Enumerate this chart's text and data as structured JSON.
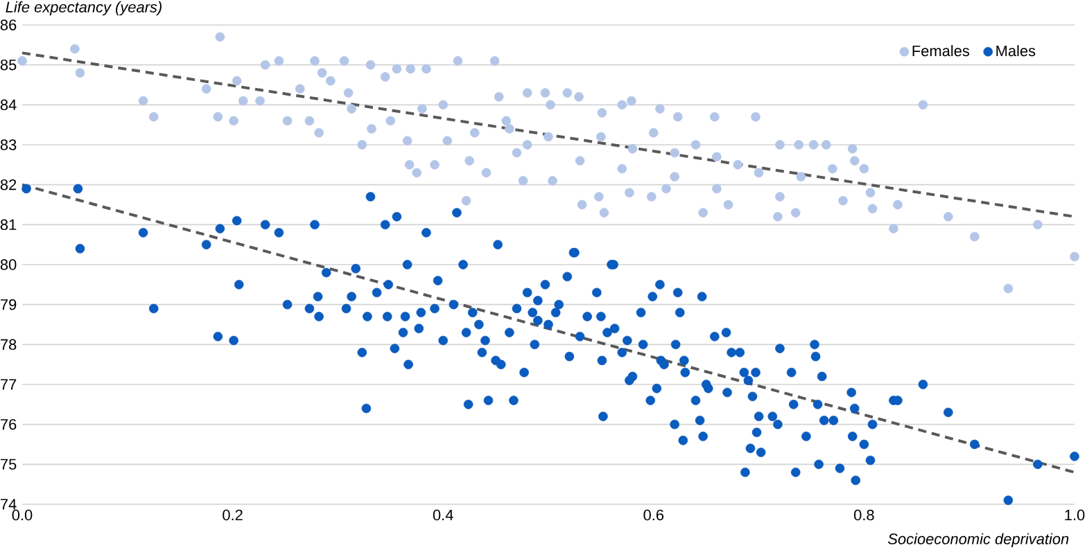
{
  "chart_data": {
    "type": "scatter",
    "xlabel": "Socioeconomic deprivation",
    "ylabel": "Life expectancy (years)",
    "xlim": [
      0,
      1
    ],
    "ylim": [
      74,
      86
    ],
    "xticks": [
      {
        "value": 0,
        "label": "0.0"
      },
      0.2,
      0.4,
      0.6,
      0.8,
      {
        "value": 1,
        "label": "1.0"
      }
    ],
    "yticks": [
      74,
      75,
      76,
      77,
      78,
      79,
      80,
      81,
      82,
      83,
      84,
      85,
      86
    ],
    "grid": "y",
    "legend": "top right",
    "marker": "circle",
    "series": [
      {
        "name": "Females",
        "color": "#b4c6e7",
        "x": [
          0.0,
          0.05,
          0.055,
          0.115,
          0.125,
          0.188,
          0.175,
          0.186,
          0.201,
          0.204,
          0.21,
          0.231,
          0.244,
          0.226,
          0.252,
          0.264,
          0.273,
          0.278,
          0.282,
          0.285,
          0.293,
          0.306,
          0.31,
          0.313,
          0.323,
          0.331,
          0.332,
          0.345,
          0.356,
          0.366,
          0.368,
          0.369,
          0.375,
          0.384,
          0.392,
          0.404,
          0.414,
          0.422,
          0.425,
          0.449,
          0.441,
          0.453,
          0.463,
          0.476,
          0.48,
          0.502,
          0.504,
          0.35,
          0.38,
          0.4,
          0.43,
          0.46,
          0.48,
          0.5,
          0.47,
          0.518,
          0.529,
          0.497,
          0.579,
          0.57,
          0.606,
          0.551,
          0.623,
          0.658,
          0.697,
          0.532,
          0.548,
          0.553,
          0.577,
          0.598,
          0.612,
          0.647,
          0.671,
          0.718,
          0.735,
          0.72,
          0.738,
          0.752,
          0.764,
          0.789,
          0.791,
          0.8,
          0.806,
          0.808,
          0.832,
          0.828,
          0.856,
          0.88,
          0.905,
          0.965,
          1.0,
          0.937,
          0.55,
          0.58,
          0.6,
          0.62,
          0.64,
          0.66,
          0.68,
          0.7,
          0.74,
          0.77,
          0.53,
          0.57,
          0.62,
          0.66,
          0.72,
          0.78
        ],
        "values": [
          85.1,
          85.4,
          84.8,
          84.1,
          83.7,
          85.7,
          84.4,
          83.7,
          83.6,
          84.6,
          84.1,
          85.0,
          85.1,
          84.1,
          83.6,
          84.4,
          83.6,
          85.1,
          83.3,
          84.8,
          84.6,
          85.1,
          84.3,
          83.9,
          83.0,
          85.0,
          83.4,
          84.7,
          84.9,
          83.1,
          82.5,
          84.9,
          82.3,
          84.9,
          82.5,
          83.1,
          85.1,
          81.6,
          82.6,
          85.1,
          82.3,
          84.2,
          83.4,
          82.1,
          84.3,
          84.0,
          82.1,
          83.6,
          83.9,
          84.0,
          83.3,
          83.6,
          83.0,
          83.2,
          82.8,
          84.3,
          84.2,
          84.3,
          84.1,
          84.0,
          83.9,
          83.8,
          83.7,
          83.7,
          83.7,
          81.5,
          81.7,
          81.3,
          81.8,
          81.7,
          81.9,
          81.3,
          81.5,
          81.2,
          81.3,
          83.0,
          83.0,
          83.0,
          83.0,
          82.9,
          82.6,
          82.4,
          81.8,
          81.4,
          81.5,
          80.9,
          84.0,
          81.2,
          80.7,
          81.0,
          80.2,
          79.4,
          83.2,
          82.9,
          83.3,
          82.8,
          83.0,
          82.7,
          82.5,
          82.3,
          82.2,
          82.4,
          82.6,
          82.4,
          82.2,
          81.9,
          81.7,
          81.6
        ]
      },
      {
        "name": "Males",
        "color": "#0b5cbf",
        "x": [
          0.004,
          0.053,
          0.055,
          0.115,
          0.175,
          0.188,
          0.204,
          0.231,
          0.244,
          0.278,
          0.331,
          0.356,
          0.345,
          0.384,
          0.413,
          0.452,
          0.524,
          0.562,
          0.125,
          0.186,
          0.201,
          0.206,
          0.252,
          0.273,
          0.281,
          0.282,
          0.289,
          0.308,
          0.313,
          0.317,
          0.323,
          0.327,
          0.328,
          0.347,
          0.354,
          0.362,
          0.367,
          0.364,
          0.377,
          0.379,
          0.392,
          0.4,
          0.395,
          0.41,
          0.422,
          0.424,
          0.437,
          0.443,
          0.467,
          0.477,
          0.45,
          0.455,
          0.428,
          0.434,
          0.44,
          0.463,
          0.48,
          0.485,
          0.49,
          0.487,
          0.5,
          0.419,
          0.366,
          0.348,
          0.337,
          0.497,
          0.507,
          0.518,
          0.525,
          0.537,
          0.546,
          0.551,
          0.552,
          0.56,
          0.556,
          0.563,
          0.575,
          0.577,
          0.588,
          0.599,
          0.606,
          0.597,
          0.603,
          0.607,
          0.623,
          0.625,
          0.621,
          0.629,
          0.62,
          0.628,
          0.647,
          0.644,
          0.64,
          0.646,
          0.658,
          0.652,
          0.669,
          0.674,
          0.682,
          0.687,
          0.692,
          0.686,
          0.69,
          0.697,
          0.694,
          0.7,
          0.698,
          0.702,
          0.72,
          0.713,
          0.718,
          0.731,
          0.733,
          0.735,
          0.745,
          0.753,
          0.754,
          0.756,
          0.757,
          0.76,
          0.762,
          0.771,
          0.777,
          0.788,
          0.789,
          0.792,
          0.791,
          0.8,
          0.806,
          0.808,
          0.828,
          0.832,
          0.856,
          0.88,
          0.905,
          0.965,
          0.937,
          1.0,
          0.47,
          0.49,
          0.51,
          0.53,
          0.55,
          0.57,
          0.59,
          0.61,
          0.63,
          0.65,
          0.67,
          0.52,
          0.58
        ],
        "values": [
          81.9,
          81.9,
          80.4,
          80.8,
          80.5,
          80.9,
          81.1,
          81.0,
          80.8,
          81.0,
          81.7,
          81.2,
          81.0,
          80.8,
          81.3,
          80.5,
          80.3,
          80.0,
          78.9,
          78.2,
          78.1,
          79.5,
          79.0,
          78.9,
          79.2,
          78.7,
          79.8,
          78.9,
          79.2,
          79.9,
          77.8,
          76.4,
          78.7,
          78.7,
          77.9,
          78.3,
          77.5,
          78.7,
          78.4,
          78.8,
          78.9,
          78.1,
          79.6,
          79.0,
          78.3,
          76.5,
          77.8,
          76.6,
          76.6,
          77.3,
          77.6,
          77.5,
          78.8,
          78.5,
          78.1,
          78.3,
          79.3,
          78.8,
          79.1,
          78.0,
          78.5,
          80.0,
          80.0,
          79.5,
          79.3,
          79.5,
          78.8,
          79.7,
          80.3,
          78.7,
          79.3,
          77.6,
          76.2,
          80.0,
          78.3,
          78.4,
          78.1,
          77.1,
          78.8,
          79.2,
          79.5,
          76.6,
          76.9,
          77.6,
          79.3,
          78.8,
          78.0,
          77.6,
          76.0,
          75.6,
          75.7,
          76.1,
          76.6,
          79.2,
          78.2,
          76.9,
          78.3,
          77.8,
          77.8,
          74.8,
          75.4,
          77.3,
          77.1,
          77.3,
          76.7,
          76.2,
          75.8,
          75.3,
          77.9,
          76.2,
          76.0,
          77.3,
          76.5,
          74.8,
          75.7,
          78.0,
          77.7,
          76.5,
          75.0,
          77.2,
          76.1,
          76.1,
          74.9,
          76.8,
          75.7,
          74.6,
          76.4,
          75.5,
          75.1,
          76.0,
          76.6,
          76.6,
          77.0,
          76.3,
          75.5,
          75.0,
          74.1,
          75.2,
          78.9,
          78.6,
          79.0,
          78.2,
          78.7,
          77.8,
          78.0,
          77.5,
          77.3,
          77.0,
          76.8,
          77.7,
          77.2
        ]
      },
      {
        "type": "line",
        "color": "#595959",
        "line_style": "dashed",
        "marker": "none",
        "x": [
          0,
          1
        ],
        "values": [
          85.3,
          81.2
        ]
      },
      {
        "type": "line",
        "color": "#595959",
        "line_style": "dashed",
        "marker": "none",
        "x": [
          0,
          1
        ],
        "values": [
          82.0,
          74.8
        ]
      }
    ]
  }
}
